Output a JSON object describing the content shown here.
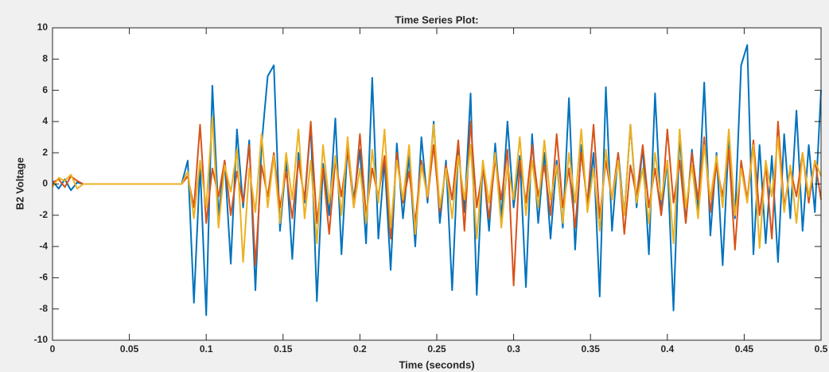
{
  "chart_data": {
    "type": "line",
    "title": "Time Series Plot:",
    "xlabel": "Time (seconds)",
    "ylabel": "B2 Voltage",
    "xlim": [
      0,
      0.5
    ],
    "xticks": [
      0,
      0.05,
      0.1,
      0.15,
      0.2,
      0.25,
      0.3,
      0.35,
      0.4,
      0.45,
      0.5
    ],
    "ylim": [
      -10,
      10
    ],
    "yticks": [
      -10,
      -8,
      -6,
      -4,
      -2,
      0,
      2,
      4,
      6,
      8,
      10
    ],
    "grid": false,
    "x": [
      0,
      0.004,
      0.008,
      0.012,
      0.016,
      0.02,
      0.024,
      0.028,
      0.032,
      0.036,
      0.04,
      0.044,
      0.048,
      0.052,
      0.056,
      0.06,
      0.064,
      0.068,
      0.072,
      0.076,
      0.08,
      0.084,
      0.088,
      0.092,
      0.096,
      0.1,
      0.104,
      0.108,
      0.112,
      0.116,
      0.12,
      0.124,
      0.128,
      0.132,
      0.136,
      0.14,
      0.144,
      0.148,
      0.152,
      0.156,
      0.16,
      0.164,
      0.168,
      0.172,
      0.176,
      0.18,
      0.184,
      0.188,
      0.192,
      0.196,
      0.2,
      0.204,
      0.208,
      0.212,
      0.216,
      0.22,
      0.224,
      0.228,
      0.232,
      0.236,
      0.24,
      0.244,
      0.248,
      0.252,
      0.256,
      0.26,
      0.264,
      0.268,
      0.272,
      0.276,
      0.28,
      0.284,
      0.288,
      0.292,
      0.296,
      0.3,
      0.304,
      0.308,
      0.312,
      0.316,
      0.32,
      0.324,
      0.328,
      0.332,
      0.336,
      0.34,
      0.344,
      0.348,
      0.352,
      0.356,
      0.36,
      0.364,
      0.368,
      0.372,
      0.376,
      0.38,
      0.384,
      0.388,
      0.392,
      0.396,
      0.4,
      0.404,
      0.408,
      0.412,
      0.416,
      0.42,
      0.424,
      0.428,
      0.432,
      0.436,
      0.44,
      0.444,
      0.448,
      0.452,
      0.456,
      0.46,
      0.464,
      0.468,
      0.472,
      0.476,
      0.48,
      0.484,
      0.488,
      0.492,
      0.496,
      0.5
    ],
    "series": [
      {
        "color": "#0072BD",
        "values": [
          0.2,
          -0.3,
          0.3,
          -0.4,
          0.1,
          0,
          0,
          0,
          0,
          0,
          0,
          0,
          0,
          0,
          0,
          0,
          0,
          0,
          0,
          0,
          0,
          0,
          1.5,
          -7.6,
          1.2,
          -8.4,
          6.3,
          -2,
          1.5,
          -5.1,
          3.5,
          -1.5,
          2.8,
          -6.8,
          2.5,
          6.9,
          7.6,
          -3,
          1.5,
          -4.8,
          2,
          -1.2,
          3.8,
          -7.5,
          1.3,
          -2,
          4.2,
          -4.5,
          2.5,
          -1,
          2.2,
          -3.8,
          6.8,
          -3.5,
          1.5,
          -5.5,
          2.6,
          -2.2,
          1.8,
          -4,
          3,
          -1.2,
          4,
          -2.5,
          1.5,
          -6.8,
          2.2,
          -1.8,
          5.8,
          -7.1,
          1.5,
          -3,
          2.6,
          -2.2,
          4,
          -1.5,
          1.8,
          -6.6,
          3.2,
          -2.5,
          2,
          -3.5,
          1.5,
          -2.8,
          5.5,
          -4.2,
          2.5,
          -1.5,
          2,
          -7.2,
          6.2,
          -3,
          2,
          -2,
          3.8,
          -1.5,
          2.4,
          -4.5,
          5.8,
          -2,
          1.5,
          -8.1,
          3.2,
          -2.5,
          2.2,
          -1.8,
          6.5,
          -3.3,
          2,
          -5.2,
          3,
          -2.2,
          7.6,
          8.9,
          -4.5,
          2.5,
          -3.8,
          1.8,
          -5,
          3.2,
          -2.2,
          4.7,
          -3,
          2.5,
          -1.8,
          6
        ]
      },
      {
        "color": "#D95319",
        "values": [
          0.1,
          0.3,
          -0.2,
          0.5,
          0.2,
          0,
          0,
          0,
          0,
          0,
          0,
          0,
          0,
          0,
          0,
          0,
          0,
          0,
          0,
          0,
          0,
          0,
          0.5,
          -1.5,
          3.8,
          -2.5,
          1,
          -0.8,
          1.5,
          -2,
          0.8,
          -1.2,
          2.5,
          -5.2,
          1.2,
          -0.8,
          2,
          -1.5,
          0.8,
          -2.2,
          1.5,
          -1,
          4,
          -2.5,
          1,
          -3.2,
          1.5,
          -0.8,
          2.2,
          -1.5,
          3.2,
          -2,
          1,
          -0.8,
          1.8,
          -3.5,
          2,
          -1.2,
          0.8,
          -2.5,
          1.5,
          -0.9,
          2.5,
          -1.8,
          1.2,
          -1,
          2.8,
          -3,
          4,
          -1.5,
          1,
          -2.2,
          1.6,
          -1,
          2.2,
          -6.5,
          1.5,
          -1.2,
          2.5,
          -0.8,
          1.2,
          -2,
          3.2,
          -1.5,
          1,
          -2.8,
          2,
          -1.2,
          3.8,
          -2.2,
          1.5,
          -1,
          2,
          -3.2,
          1.2,
          -0.8,
          2.5,
          -1.5,
          1,
          -2,
          3.5,
          -1.2,
          1.5,
          -2.5,
          2,
          -1,
          3,
          -1.8,
          1.2,
          -0.8,
          2.2,
          -4.2,
          1.5,
          -1,
          2.8,
          -2,
          1.2,
          -3.5,
          4,
          -1.5,
          1,
          -0.8,
          2,
          -1.2,
          1.5,
          -1
        ]
      },
      {
        "color": "#EDB120",
        "values": [
          -0.2,
          0.4,
          0.2,
          0.6,
          -0.3,
          0,
          0,
          0,
          0,
          0,
          0,
          0,
          0,
          0,
          0,
          0,
          0,
          0,
          0,
          0,
          0,
          0,
          0.8,
          -2.2,
          1.5,
          -1.5,
          4.3,
          -2.8,
          1.2,
          -0.5,
          2.2,
          -5,
          1,
          -1.8,
          3.2,
          -1.5,
          1.8,
          -2.5,
          2,
          -1,
          3.5,
          -2.2,
          1.5,
          -3.8,
          2.5,
          -1.2,
          1.8,
          -2,
          3,
          -1.5,
          1,
          -2.5,
          2.2,
          -1.2,
          3.5,
          -2.8,
          1.5,
          -1,
          2.5,
          -3.2,
          1.2,
          -0.8,
          3.8,
          -1.5,
          1,
          -2.2,
          1.8,
          -1,
          2.5,
          -3.5,
          1.5,
          -1.2,
          2,
          -2.8,
          1.2,
          -1,
          3,
          -2,
          1.5,
          -1.5,
          2.8,
          -1,
          1.2,
          -2.5,
          2,
          -1.2,
          3.5,
          -1.8,
          1,
          -3,
          2.2,
          -1,
          1.5,
          -2,
          3.8,
          -1.2,
          1,
          -2.5,
          2,
          -1,
          1.5,
          -3.8,
          3.5,
          -1.5,
          1.2,
          -2.2,
          2.5,
          -1,
          1.8,
          -1.5,
          3.5,
          -2,
          1,
          -1.2,
          2.5,
          -4.1,
          1.5,
          -0.8,
          3,
          -1.8,
          1.2,
          -2.5,
          2,
          -0.8,
          1.5,
          0.5
        ]
      }
    ]
  }
}
